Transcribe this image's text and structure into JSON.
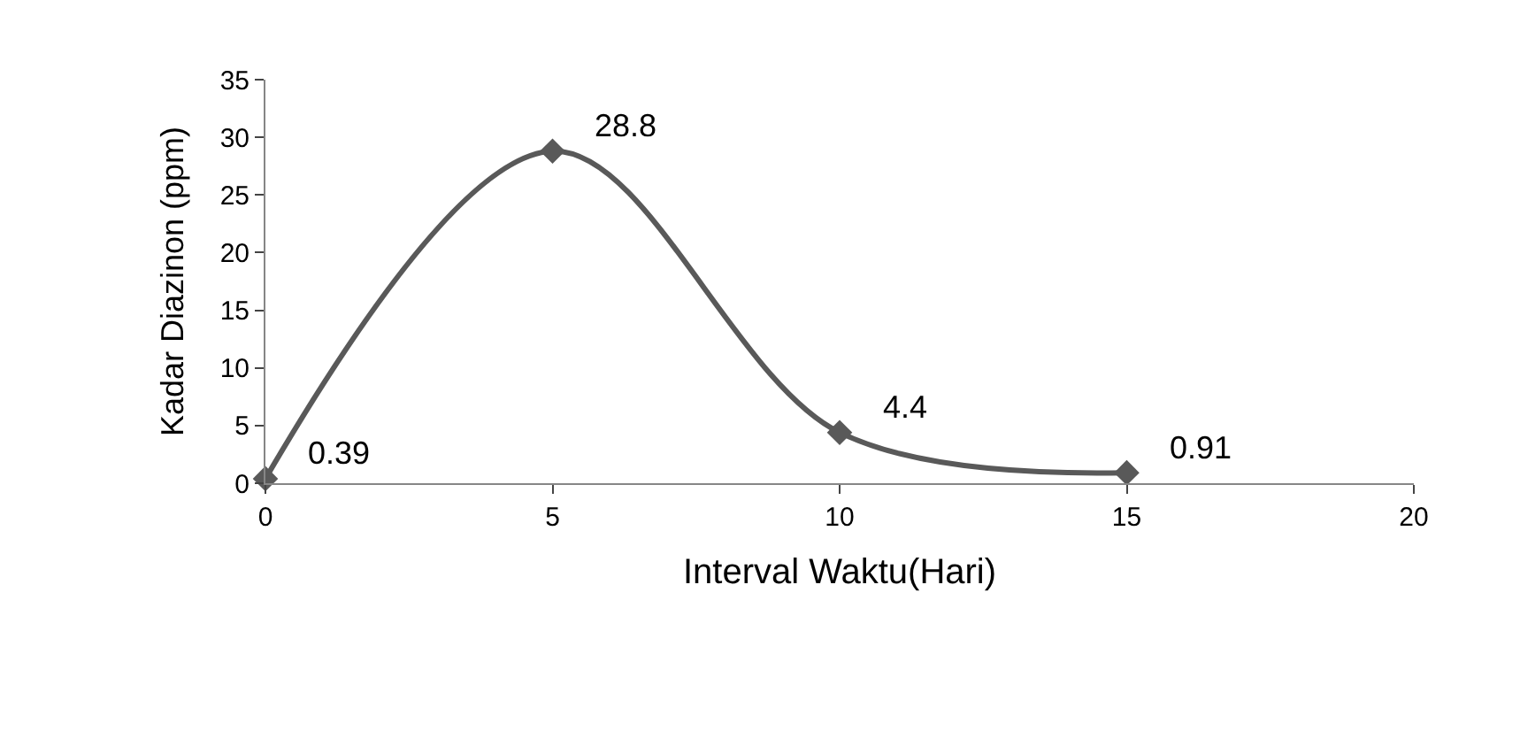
{
  "chart_data": {
    "type": "line",
    "xlabel": "Interval Waktu(Hari)",
    "ylabel": "Kadar Diazinon (ppm)",
    "x": [
      0,
      5,
      10,
      15
    ],
    "series": [
      {
        "color": "#595959",
        "values": [
          0.39,
          28.8,
          4.4,
          0.91
        ]
      }
    ],
    "xlim": [
      0,
      20
    ],
    "xticks": [
      0,
      5,
      10,
      15,
      20
    ],
    "ylim": [
      0,
      35
    ],
    "yticks": [
      0,
      5,
      10,
      15,
      20,
      25,
      30,
      35
    ],
    "marker": "diamond",
    "line_style": "solid",
    "data_labels": true
  }
}
